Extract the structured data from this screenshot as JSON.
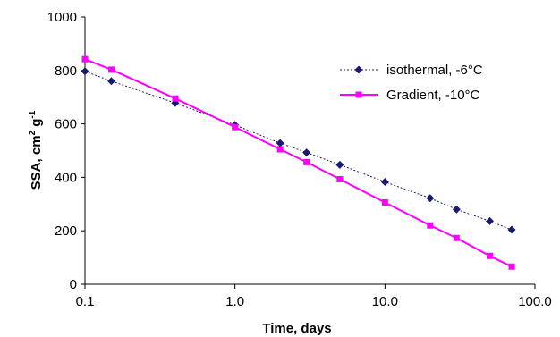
{
  "chart_data": {
    "type": "line",
    "xlabel": "Time, days",
    "ylabel_main": "SSA, cm",
    "ylabel_sup1": "2",
    "ylabel_mid": " g",
    "ylabel_sup2": "-1",
    "xscale": "log",
    "xlim": [
      0.1,
      100
    ],
    "ylim": [
      0,
      1000
    ],
    "xticks": [
      0.1,
      1,
      10,
      100
    ],
    "xtick_labels": [
      "0.1",
      "1.0",
      "10.0",
      "100.0"
    ],
    "yticks": [
      0,
      200,
      400,
      600,
      800,
      1000
    ],
    "ytick_labels": [
      "0",
      "200",
      "400",
      "600",
      "800",
      "1000"
    ],
    "grid": false,
    "legend_position": "top-right",
    "series": [
      {
        "name": "isothermal, -6°C",
        "color": "#1a1a6e",
        "marker": "diamond",
        "line_style": "dotted",
        "x": [
          0.1,
          0.15,
          0.4,
          1,
          2,
          3,
          5,
          10,
          20,
          30,
          50,
          70
        ],
        "y": [
          797,
          760,
          678,
          596,
          528,
          493,
          447,
          383,
          322,
          280,
          236,
          204
        ]
      },
      {
        "name": "Gradient, -10°C",
        "color": "#ff00ff",
        "marker": "square",
        "line_style": "solid",
        "x": [
          0.1,
          0.15,
          0.4,
          1,
          2,
          3,
          5,
          10,
          20,
          30,
          50,
          70
        ],
        "y": [
          842,
          803,
          695,
          588,
          505,
          457,
          393,
          306,
          220,
          173,
          106,
          66
        ]
      }
    ]
  }
}
